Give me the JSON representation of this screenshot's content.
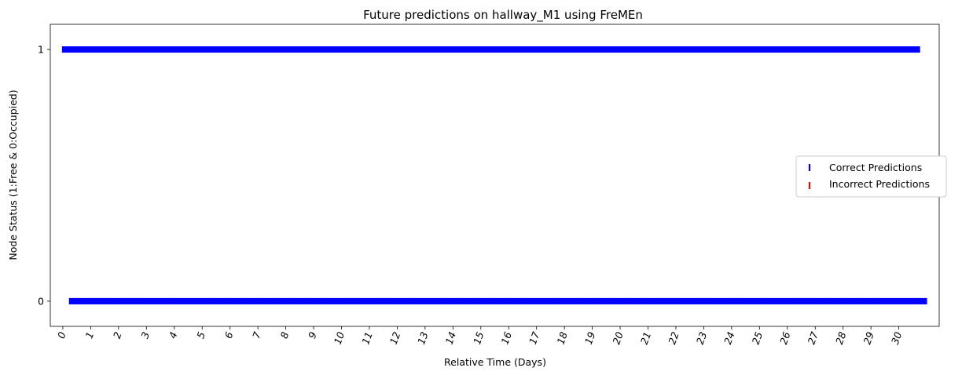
{
  "chart_data": {
    "type": "scatter",
    "title": "Future predictions on hallway_M1 using FreMEn",
    "xlabel": "Relative Time (Days)",
    "ylabel": "Node Status (1:Free & 0:Occupied)",
    "xlim": [
      -0.45,
      31.45
    ],
    "ylim": [
      -0.1,
      1.1
    ],
    "xticks": [
      0,
      1,
      2,
      3,
      4,
      5,
      6,
      7,
      8,
      9,
      10,
      11,
      12,
      13,
      14,
      15,
      16,
      17,
      18,
      19,
      20,
      21,
      22,
      23,
      24,
      25,
      26,
      27,
      28,
      29,
      30
    ],
    "xtick_labels": [
      "0",
      "1",
      "2",
      "3",
      "4",
      "5",
      "6",
      "7",
      "8",
      "9",
      "10",
      "11",
      "12",
      "13",
      "14",
      "15",
      "16",
      "17",
      "18",
      "19",
      "20",
      "21",
      "22",
      "23",
      "24",
      "25",
      "26",
      "27",
      "28",
      "29",
      "30"
    ],
    "xtick_rotation": 70,
    "yticks": [
      0,
      1
    ],
    "ytick_labels": [
      "0",
      "1"
    ],
    "legend_position": "center-right",
    "marker": "vertical-line",
    "series": [
      {
        "name": "Correct Predictions",
        "color": "#0000ff",
        "state_one_range": [
          0,
          30.75
        ],
        "state_zero_range": [
          0.25,
          31.0
        ],
        "step_days": 0.0417
      },
      {
        "name": "Incorrect Predictions",
        "color": "#ff0000",
        "points": []
      }
    ]
  }
}
